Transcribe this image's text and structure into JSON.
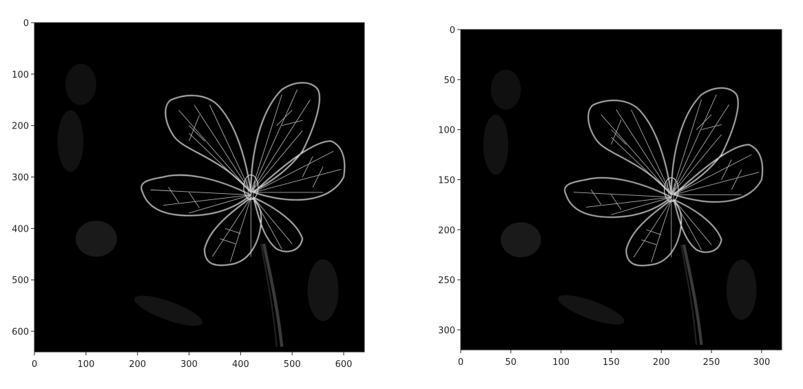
{
  "figure": {
    "panels": [
      {
        "id": "left",
        "image_extent": {
          "x": [
            0,
            640
          ],
          "y": [
            0,
            640
          ]
        },
        "x_ticks": [
          "0",
          "100",
          "200",
          "300",
          "400",
          "500",
          "600"
        ],
        "y_ticks": [
          "0",
          "100",
          "200",
          "300",
          "400",
          "500",
          "600"
        ],
        "x_tick_values": [
          0,
          100,
          200,
          300,
          400,
          500,
          600
        ],
        "y_tick_values": [
          0,
          100,
          200,
          300,
          400,
          500,
          600
        ]
      },
      {
        "id": "right",
        "image_extent": {
          "x": [
            0,
            320
          ],
          "y": [
            0,
            320
          ]
        },
        "x_ticks": [
          "0",
          "50",
          "100",
          "150",
          "200",
          "250",
          "300"
        ],
        "y_ticks": [
          "0",
          "50",
          "100",
          "150",
          "200",
          "250",
          "300"
        ],
        "x_tick_values": [
          0,
          50,
          100,
          150,
          200,
          250,
          300
        ],
        "y_tick_values": [
          0,
          50,
          100,
          150,
          200,
          250,
          300
        ]
      }
    ],
    "colors": {
      "background": "#000000",
      "edge": "#e6e6e6",
      "axis": "#222222"
    }
  }
}
